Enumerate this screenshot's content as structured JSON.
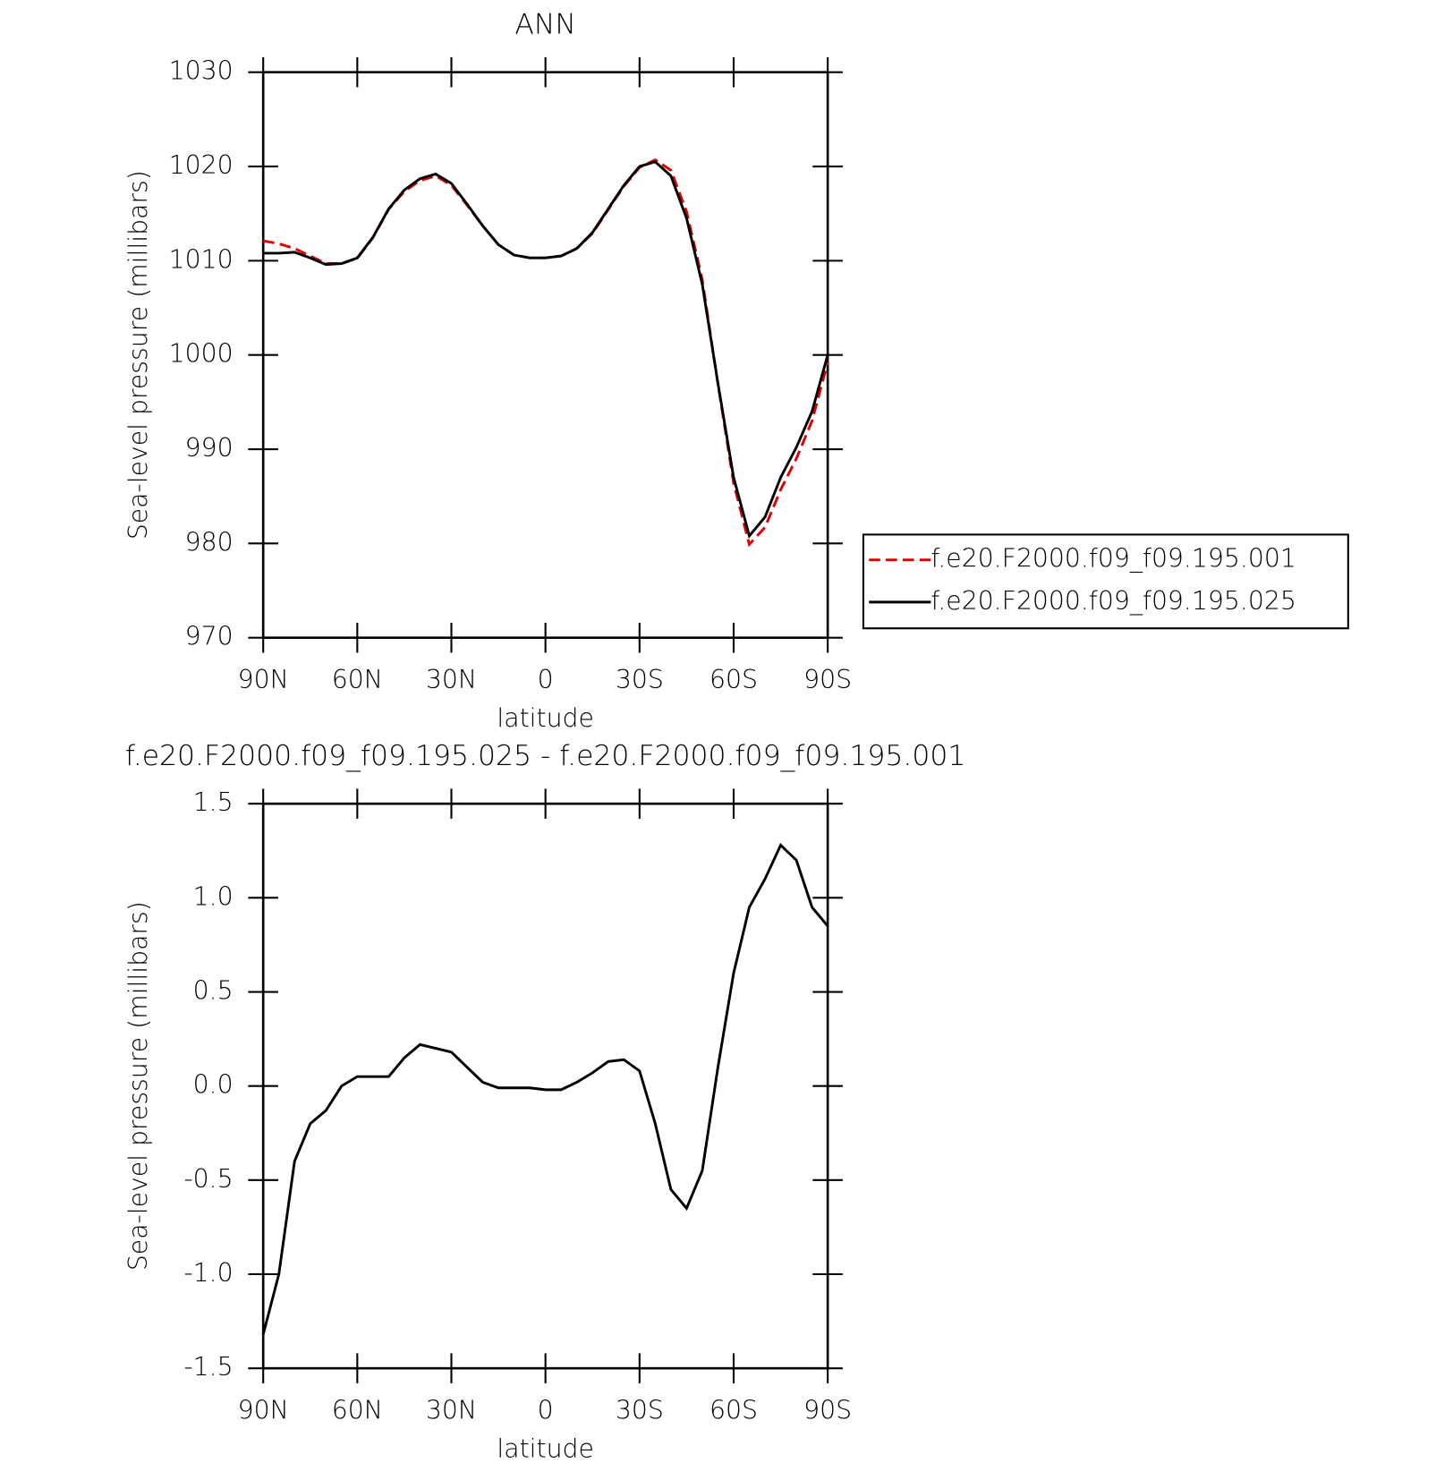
{
  "chart_data": [
    {
      "type": "line",
      "title": "ANN",
      "x_label": "latitude",
      "y_label": "Sea-level pressure (millibars)",
      "x": [
        90,
        85,
        80,
        75,
        70,
        65,
        60,
        55,
        50,
        45,
        40,
        35,
        30,
        25,
        20,
        15,
        10,
        5,
        0,
        -5,
        -10,
        -15,
        -20,
        -25,
        -30,
        -35,
        -40,
        -45,
        -50,
        -55,
        -60,
        -65,
        -70,
        -75,
        -80,
        -85,
        -90
      ],
      "xlim": [
        90,
        -90
      ],
      "xticks": [
        {
          "value": 90,
          "label": "90N"
        },
        {
          "value": 60,
          "label": "60N"
        },
        {
          "value": 30,
          "label": "30N"
        },
        0,
        {
          "value": -30,
          "label": "30S"
        },
        {
          "value": -60,
          "label": "60S"
        },
        {
          "value": -90,
          "label": "90S"
        }
      ],
      "ylim": [
        970,
        1030
      ],
      "yticks": [
        970,
        980,
        990,
        1000,
        1010,
        1020,
        1030
      ],
      "legend": "right",
      "series": [
        {
          "name": "f.e20.F2000.f09_f09.195.001",
          "color": "#e00000",
          "dashed": true,
          "values": [
            1012.1,
            1011.8,
            1011.3,
            1010.5,
            1009.7,
            1009.7,
            1010.25,
            1012.45,
            1015.45,
            1017.35,
            1018.5,
            1019.0,
            1018.0,
            1015.9,
            1013.7,
            1011.7,
            1010.6,
            1010.3,
            1010.3,
            1010.5,
            1011.3,
            1012.9,
            1015.4,
            1017.9,
            1019.9,
            1020.7,
            1019.6,
            1015.2,
            1008.0,
            996.9,
            986.4,
            979.9,
            981.7,
            985.7,
            989.0,
            993.0,
            999.2
          ]
        },
        {
          "name": "f.e20.F2000.f09_f09.195.025",
          "color": "#000000",
          "dashed": false,
          "values": [
            1010.8,
            1010.8,
            1010.9,
            1010.3,
            1009.6,
            1009.7,
            1010.3,
            1012.5,
            1015.5,
            1017.5,
            1018.7,
            1019.2,
            1018.2,
            1016.0,
            1013.7,
            1011.7,
            1010.6,
            1010.3,
            1010.3,
            1010.5,
            1011.3,
            1013.0,
            1015.5,
            1018.0,
            1020.0,
            1020.5,
            1019.0,
            1014.5,
            1007.5,
            997.0,
            987.0,
            980.8,
            982.8,
            987.0,
            990.2,
            994.0,
            1000.0
          ]
        }
      ]
    },
    {
      "type": "line",
      "title": "f.e20.F2000.f09_f09.195.025 - f.e20.F2000.f09_f09.195.001",
      "x_label": "latitude",
      "y_label": "Sea-level pressure (millibars)",
      "x": [
        90,
        85,
        80,
        75,
        70,
        65,
        60,
        55,
        50,
        45,
        40,
        35,
        30,
        25,
        20,
        15,
        10,
        5,
        0,
        -5,
        -10,
        -15,
        -20,
        -25,
        -30,
        -35,
        -40,
        -45,
        -50,
        -55,
        -60,
        -65,
        -70,
        -75,
        -80,
        -85,
        -90
      ],
      "xlim": [
        90,
        -90
      ],
      "xticks": [
        {
          "value": 90,
          "label": "90N"
        },
        {
          "value": 60,
          "label": "60N"
        },
        {
          "value": 30,
          "label": "30N"
        },
        0,
        {
          "value": -30,
          "label": "30S"
        },
        {
          "value": -60,
          "label": "60S"
        },
        {
          "value": -90,
          "label": "90S"
        }
      ],
      "ylim": [
        -1.5,
        1.5
      ],
      "yticks": [
        -1.5,
        {
          "value": -1,
          "label": "-1.0"
        },
        -0.5,
        {
          "value": 0,
          "label": "0.0"
        },
        0.5,
        {
          "value": 1,
          "label": "1.0"
        },
        1.5
      ],
      "series": [
        {
          "color": "#000000",
          "dashed": false,
          "values": [
            -1.32,
            -1.0,
            -0.4,
            -0.2,
            -0.13,
            0.0,
            0.05,
            0.05,
            0.05,
            0.15,
            0.22,
            0.2,
            0.18,
            0.1,
            0.02,
            -0.01,
            -0.01,
            -0.01,
            -0.02,
            -0.02,
            0.02,
            0.07,
            0.13,
            0.14,
            0.08,
            -0.2,
            -0.55,
            -0.65,
            -0.45,
            0.1,
            0.6,
            0.95,
            1.1,
            1.28,
            1.2,
            0.95,
            0.85
          ]
        }
      ]
    }
  ]
}
